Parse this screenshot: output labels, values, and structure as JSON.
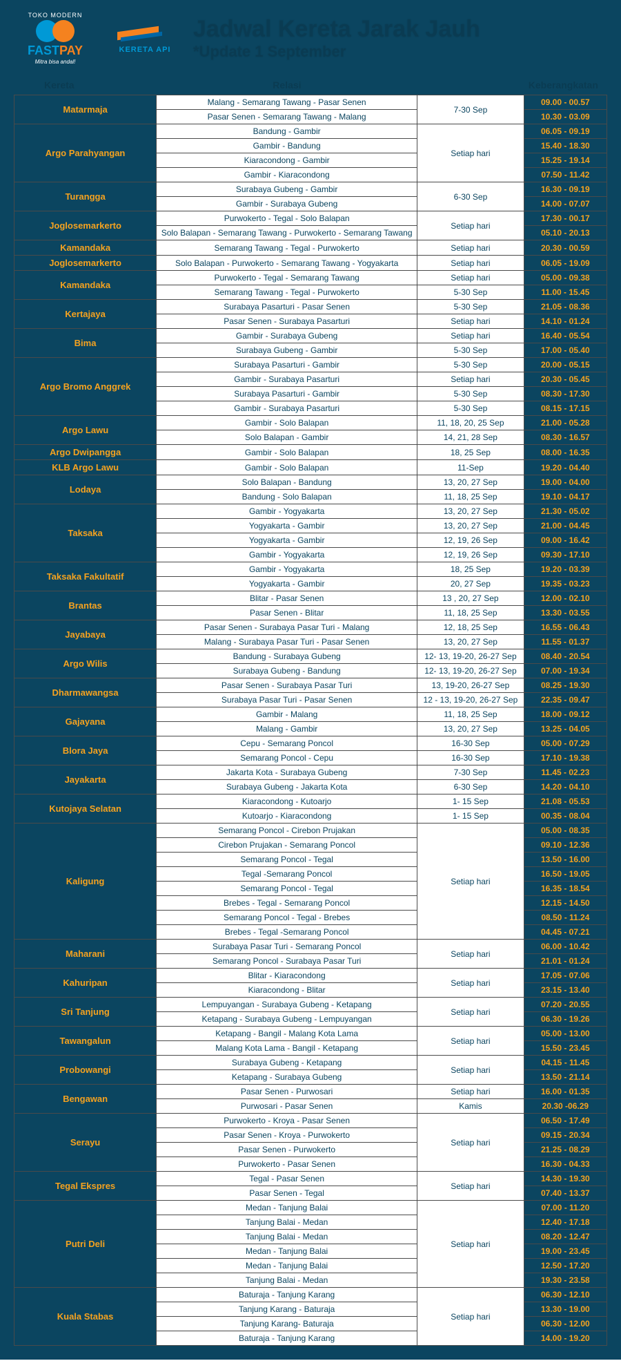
{
  "logos": {
    "fastpay_top": "TOKO MODERN",
    "fastpay_name1": "FAST",
    "fastpay_name2": "PAY",
    "fastpay_sub": "Mitra bisa andal!",
    "kai_text": "KERETA API"
  },
  "title": {
    "main": "Jadwal Kereta Jarak Jauh",
    "sub": "*Update 1 September"
  },
  "columns": {
    "name": "Kereta",
    "route": "Relasi",
    "date": "",
    "time": "Keberangkatan"
  },
  "rows": [
    {
      "name": "Matarmaja",
      "routes": [
        "Malang - Semarang Tawang - Pasar Senen",
        "Pasar Senen - Semarang Tawang - Malang"
      ],
      "dates": [
        "7-30 Sep"
      ],
      "times": [
        "09.00 - 00.57",
        "10.30 - 03.09"
      ]
    },
    {
      "name": "Argo Parahyangan",
      "routes": [
        "Bandung - Gambir",
        "Gambir - Bandung",
        "Kiaracondong - Gambir",
        "Gambir - Kiaracondong"
      ],
      "dates": [
        "Setiap hari"
      ],
      "times": [
        "06.05 - 09.19",
        "15.40 - 18.30",
        "15.25 - 19.14",
        "07.50 - 11.42"
      ]
    },
    {
      "name": "Turangga",
      "routes": [
        "Surabaya Gubeng - Gambir",
        "Gambir - Surabaya Gubeng"
      ],
      "dates": [
        "6-30 Sep"
      ],
      "times": [
        "16.30 - 09.19",
        "14.00 - 07.07"
      ]
    },
    {
      "name": "Joglosemarkerto",
      "routes": [
        "Purwokerto - Tegal - Solo Balapan",
        "Solo Balapan - Semarang Tawang - Purwokerto - Semarang Tawang"
      ],
      "dates": [
        "Setiap hari"
      ],
      "times": [
        "17.30 - 00.17",
        "05.10 - 20.13"
      ]
    },
    {
      "name": "Kamandaka",
      "routes": [
        "Semarang Tawang - Tegal - Purwokerto"
      ],
      "dates": [
        "Setiap hari"
      ],
      "times": [
        "20.30 - 00.59"
      ]
    },
    {
      "name": "Joglosemarkerto",
      "routes": [
        "Solo Balapan - Purwokerto - Semarang Tawang  - Yogyakarta"
      ],
      "dates": [
        "Setiap hari"
      ],
      "times": [
        "06.05 - 19.09"
      ]
    },
    {
      "name": "Kamandaka",
      "routes": [
        "Purwokerto - Tegal - Semarang Tawang",
        "Semarang Tawang - Tegal - Purwokerto"
      ],
      "dates": [
        "Setiap hari",
        "5-30 Sep"
      ],
      "times": [
        "05.00 - 09.38",
        "11.00 - 15.45"
      ]
    },
    {
      "name": "Kertajaya",
      "routes": [
        "Surabaya Pasarturi - Pasar Senen",
        "Pasar Senen - Surabaya Pasarturi"
      ],
      "dates": [
        "5-30 Sep",
        "Setiap hari"
      ],
      "times": [
        "21.05 - 08.36",
        "14.10 - 01.24"
      ]
    },
    {
      "name": "Bima",
      "routes": [
        "Gambir - Surabaya Gubeng",
        "Surabaya Gubeng - Gambir"
      ],
      "dates": [
        "Setiap hari",
        "5-30 Sep"
      ],
      "times": [
        "16.40 - 05.54",
        "17.00 - 05.40"
      ]
    },
    {
      "name": "Argo Bromo Anggrek",
      "routes": [
        "Surabaya Pasarturi - Gambir",
        "Gambir - Surabaya Pasarturi",
        "Surabaya Pasarturi - Gambir",
        "Gambir - Surabaya Pasarturi"
      ],
      "dates": [
        "5-30 Sep",
        "Setiap hari",
        "5-30 Sep",
        "5-30 Sep"
      ],
      "times": [
        "20.00 - 05.15",
        "20.30 - 05.45",
        "08.30 - 17.30",
        "08.15 - 17.15"
      ]
    },
    {
      "name": "Argo Lawu",
      "routes": [
        "Gambir - Solo Balapan",
        "Solo Balapan - Gambir"
      ],
      "dates": [
        "11, 18, 20, 25 Sep",
        "14, 21, 28 Sep"
      ],
      "times": [
        "21.00 - 05.28",
        "08.30 - 16.57"
      ]
    },
    {
      "name": "Argo Dwipangga",
      "routes": [
        "Gambir - Solo Balapan"
      ],
      "dates": [
        "18, 25 Sep"
      ],
      "times": [
        "08.00 - 16.35"
      ]
    },
    {
      "name": "KLB Argo Lawu",
      "routes": [
        "Gambir - Solo Balapan"
      ],
      "dates": [
        "11-Sep"
      ],
      "times": [
        "19.20 - 04.40"
      ]
    },
    {
      "name": "Lodaya",
      "routes": [
        "Solo Balapan - Bandung",
        "Bandung - Solo Balapan"
      ],
      "dates": [
        "13, 20, 27 Sep",
        "11, 18, 25 Sep"
      ],
      "times": [
        "19.00 - 04.00",
        "19.10 - 04.17"
      ]
    },
    {
      "name": "Taksaka",
      "routes": [
        "Gambir - Yogyakarta",
        "Yogyakarta - Gambir",
        "Yogyakarta - Gambir",
        "Gambir - Yogyakarta"
      ],
      "dates": [
        "13, 20, 27 Sep",
        "13, 20, 27 Sep",
        "12, 19, 26  Sep",
        "12, 19, 26  Sep"
      ],
      "times": [
        "21.30 - 05.02",
        "21.00 - 04.45",
        "09.00 - 16.42",
        "09.30 - 17.10"
      ]
    },
    {
      "name": "Taksaka Fakultatif",
      "routes": [
        "Gambir - Yogyakarta",
        "Yogyakarta - Gambir"
      ],
      "dates": [
        "18, 25 Sep",
        "20, 27 Sep"
      ],
      "times": [
        "19.20 - 03.39",
        "19.35 - 03.23"
      ]
    },
    {
      "name": "Brantas",
      "routes": [
        "Blitar - Pasar Senen",
        "Pasar Senen - Blitar"
      ],
      "dates": [
        "13 , 20, 27 Sep",
        "11, 18, 25 Sep"
      ],
      "times": [
        "12.00 - 02.10",
        "13.30 - 03.55"
      ]
    },
    {
      "name": "Jayabaya",
      "routes": [
        "Pasar Senen - Surabaya Pasar Turi - Malang",
        "Malang - Surabaya Pasar Turi - Pasar Senen"
      ],
      "dates": [
        "12, 18, 25 Sep",
        "13, 20, 27 Sep"
      ],
      "times": [
        "16.55 - 06.43",
        "11.55 - 01.37"
      ]
    },
    {
      "name": "Argo Wilis",
      "routes": [
        "Bandung - Surabaya Gubeng",
        "Surabaya Gubeng - Bandung"
      ],
      "dates": [
        "12- 13, 19-20, 26-27 Sep",
        "12- 13, 19-20, 26-27 Sep"
      ],
      "times": [
        "08.40 - 20.54",
        "07.00 - 19.34"
      ]
    },
    {
      "name": "Dharmawangsa",
      "routes": [
        "Pasar Senen - Surabaya Pasar Turi",
        "Surabaya Pasar Turi - Pasar Senen"
      ],
      "dates": [
        "13, 19-20, 26-27 Sep",
        "12 - 13, 19-20, 26-27 Sep"
      ],
      "times": [
        "08.25 - 19.30",
        "22.35 - 09.47"
      ]
    },
    {
      "name": "Gajayana",
      "routes": [
        "Gambir - Malang",
        "Malang - Gambir"
      ],
      "dates": [
        "11, 18, 25 Sep",
        "13, 20, 27 Sep"
      ],
      "times": [
        "18.00 - 09.12",
        "13.25 - 04.05"
      ]
    },
    {
      "name": "Blora Jaya",
      "routes": [
        "Cepu - Semarang Poncol",
        "Semarang Poncol - Cepu"
      ],
      "dates": [
        "16-30 Sep",
        "16-30 Sep"
      ],
      "times": [
        "05.00 - 07.29",
        "17.10 - 19.38"
      ]
    },
    {
      "name": "Jayakarta",
      "routes": [
        "Jakarta Kota - Surabaya Gubeng",
        "Surabaya Gubeng - Jakarta Kota"
      ],
      "dates": [
        "7-30 Sep",
        "6-30 Sep"
      ],
      "times": [
        "11.45 - 02.23",
        "14.20 - 04.10"
      ]
    },
    {
      "name": "Kutojaya Selatan",
      "routes": [
        "Kiaracondong - Kutoarjo",
        "Kutoarjo - Kiaracondong"
      ],
      "dates": [
        "1- 15 Sep",
        "1- 15 Sep"
      ],
      "times": [
        "21.08 - 05.53",
        "00.35 - 08.04"
      ]
    },
    {
      "name": "Kaligung",
      "routes": [
        "Semarang Poncol - Cirebon Prujakan",
        "Cirebon Prujakan  - Semarang Poncol",
        "Semarang Poncol - Tegal",
        "Tegal -Semarang Poncol",
        "Semarang Poncol - Tegal",
        "Brebes - Tegal -  Semarang Poncol",
        "Semarang Poncol - Tegal -  Brebes",
        "Brebes - Tegal -Semarang Poncol"
      ],
      "dates": [
        "Setiap hari"
      ],
      "times": [
        "05.00 - 08.35",
        "09.10 - 12.36",
        "13.50 - 16.00",
        "16.50 - 19.05",
        "16.35 - 18.54",
        "12.15 - 14.50",
        "08.50 - 11.24",
        "04.45 - 07.21"
      ]
    },
    {
      "name": "Maharani",
      "routes": [
        "Surabaya Pasar Turi - Semarang Poncol",
        "Semarang Poncol - Surabaya Pasar Turi"
      ],
      "dates": [
        "Setiap hari"
      ],
      "times": [
        "06.00 - 10.42",
        "21.01 - 01.24"
      ]
    },
    {
      "name": "Kahuripan",
      "routes": [
        "Blitar - Kiaracondong",
        "Kiaracondong - Blitar"
      ],
      "dates": [
        "Setiap hari"
      ],
      "times": [
        "17.05 - 07.06",
        "23.15 - 13.40"
      ]
    },
    {
      "name": "Sri Tanjung",
      "routes": [
        "Lempuyangan - Surabaya Gubeng - Ketapang",
        "Ketapang - Surabaya Gubeng - Lempuyangan"
      ],
      "dates": [
        "Setiap hari"
      ],
      "times": [
        "07.20 - 20.55",
        "06.30 - 19.26"
      ]
    },
    {
      "name": "Tawangalun",
      "routes": [
        "Ketapang - Bangil - Malang Kota Lama",
        "Malang Kota Lama - Bangil - Ketapang"
      ],
      "dates": [
        "Setiap hari"
      ],
      "times": [
        "05.00 - 13.00",
        "15.50 - 23.45"
      ]
    },
    {
      "name": "Probowangi",
      "routes": [
        "Surabaya Gubeng - Ketapang",
        "Ketapang - Surabaya Gubeng"
      ],
      "dates": [
        "Setiap hari"
      ],
      "times": [
        "04.15 - 11.45",
        "13.50 - 21.14"
      ]
    },
    {
      "name": "Bengawan",
      "routes": [
        "Pasar Senen - Purwosari",
        "Purwosari - Pasar Senen"
      ],
      "dates": [
        "Setiap hari",
        "Kamis"
      ],
      "times": [
        "16.00 - 01.35",
        "20.30 -06.29"
      ]
    },
    {
      "name": "Serayu",
      "routes": [
        "Purwokerto - Kroya - Pasar Senen",
        "Pasar Senen -  Kroya - Purwokerto",
        "Pasar Senen - Purwokerto",
        "Purwokerto - Pasar Senen"
      ],
      "dates": [
        "Setiap hari"
      ],
      "times": [
        "06.50 - 17.49",
        "09.15 - 20.34",
        "21.25 - 08.29",
        "16.30 - 04.33"
      ]
    },
    {
      "name": "Tegal Ekspres",
      "routes": [
        "Tegal - Pasar Senen",
        "Pasar Senen - Tegal"
      ],
      "dates": [
        "Setiap hari"
      ],
      "times": [
        "14.30 - 19.30",
        "07.40 - 13.37"
      ]
    },
    {
      "name": "Putri Deli",
      "routes": [
        "Medan - Tanjung Balai",
        "Tanjung Balai - Medan",
        "Tanjung Balai - Medan",
        "Medan - Tanjung Balai",
        "Medan - Tanjung Balai",
        "Tanjung Balai - Medan"
      ],
      "dates": [
        "Setiap hari"
      ],
      "times": [
        "07.00 - 11.20",
        "12.40 - 17.18",
        "08.20 - 12.47",
        "19.00 - 23.45",
        "12.50 - 17.20",
        "19.30 - 23.58"
      ]
    },
    {
      "name": "Kuala Stabas",
      "routes": [
        "Baturaja - Tanjung Karang",
        "Tanjung Karang - Baturaja",
        "Tanjung Karang- Baturaja",
        "Baturaja - Tanjung Karang"
      ],
      "dates": [
        "Setiap hari"
      ],
      "times": [
        "06.30 - 12.10",
        "13.30 - 19.00",
        "06.30 - 12.00",
        "14.00 - 19.20"
      ]
    }
  ]
}
